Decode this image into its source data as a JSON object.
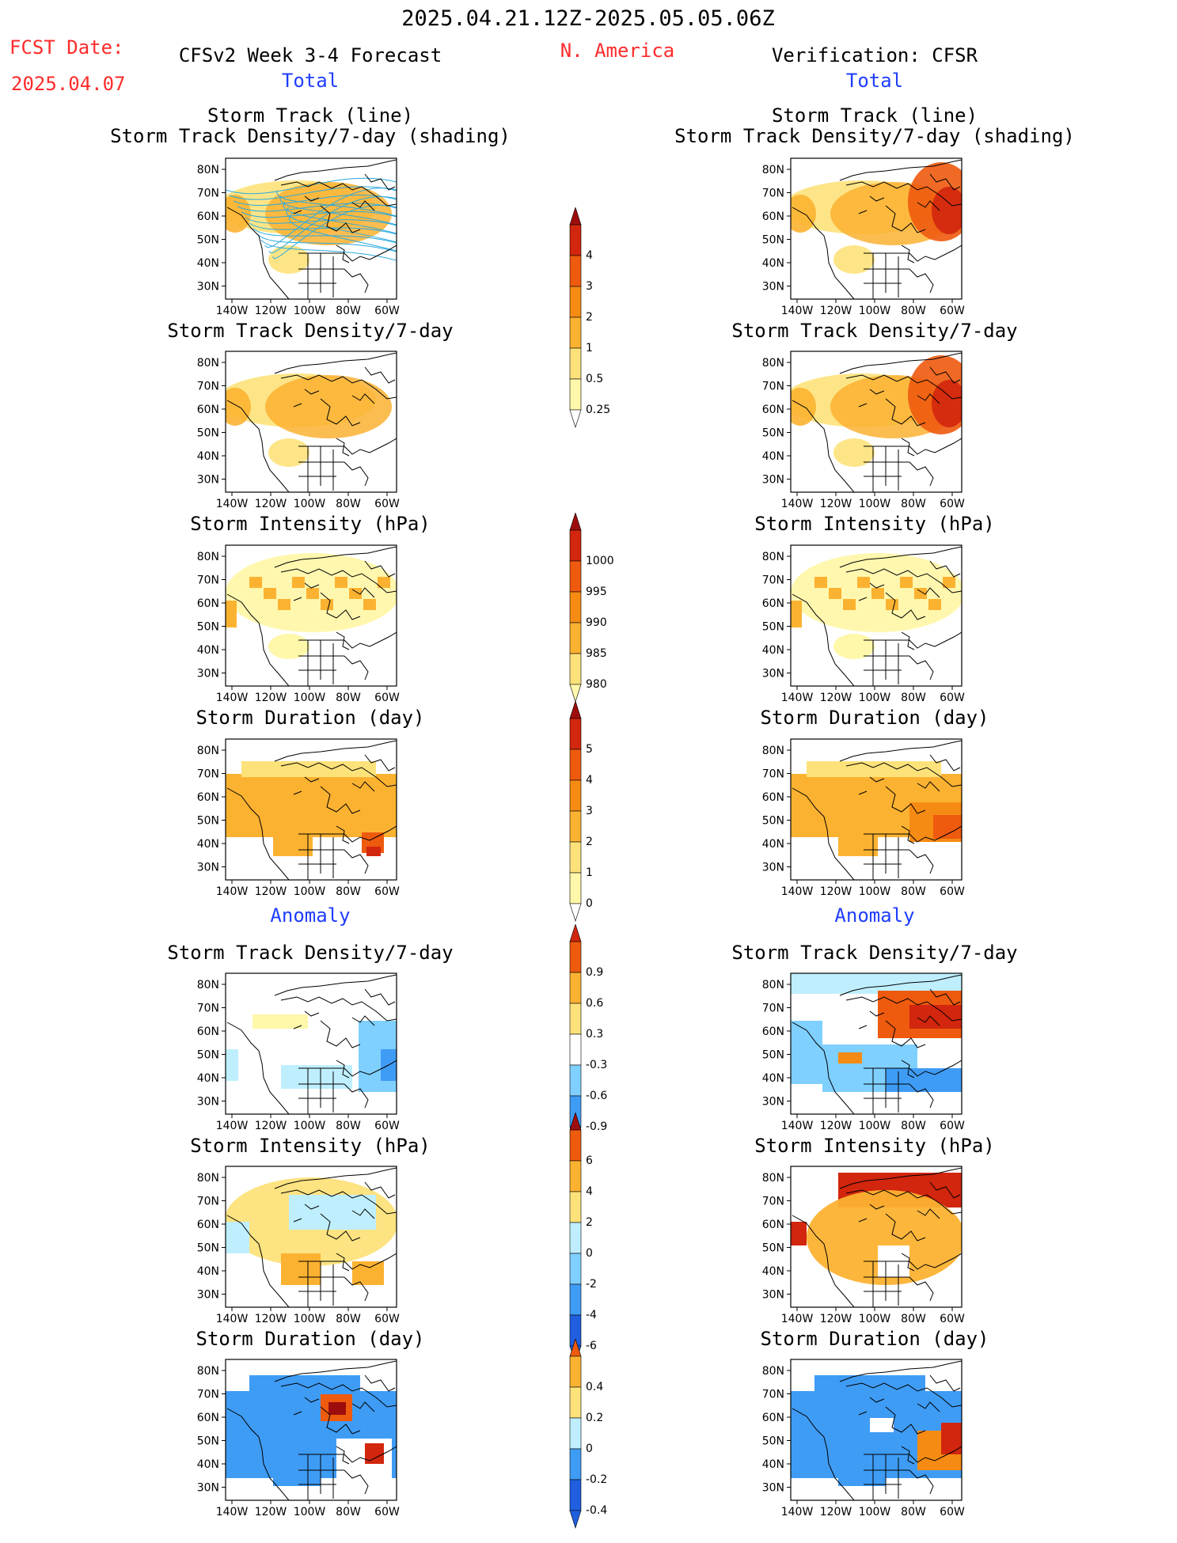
{
  "header": {
    "period": "2025.04.21.12Z-2025.05.05.06Z",
    "fcst_label": "FCST Date:",
    "fcst_date": "2025.04.07",
    "forecast_title": "CFSv2 Week 3-4 Forecast",
    "region": "N. America",
    "verification": "Verification: CFSR"
  },
  "sections": {
    "total": "Total",
    "anomaly": "Anomaly"
  },
  "panel_titles": {
    "track_line": "Storm Track (line)",
    "track_shading": "Storm Track Density/7-day (shading)",
    "density": "Storm Track Density/7-day",
    "intensity": "Storm Intensity (hPa)",
    "duration": "Storm Duration (day)"
  },
  "axes": {
    "lat_labels": [
      "80N",
      "70N",
      "60N",
      "50N",
      "40N",
      "30N"
    ],
    "lon_labels": [
      "140W",
      "120W",
      "100W",
      "80W",
      "60W"
    ]
  },
  "colorbars": {
    "density_total": {
      "labels": [
        "4",
        "3",
        "2",
        "1",
        "0.5",
        "0.25"
      ]
    },
    "intensity_total": {
      "labels": [
        "1000",
        "995",
        "990",
        "985",
        "980"
      ]
    },
    "duration_total": {
      "labels": [
        "5",
        "4",
        "3",
        "2",
        "1",
        "0"
      ]
    },
    "density_anom": {
      "labels": [
        "0.9",
        "0.6",
        "0.3",
        "-0.3",
        "-0.6",
        "-0.9"
      ]
    },
    "intensity_anom": {
      "labels": [
        "6",
        "4",
        "2",
        "0",
        "-2",
        "-4",
        "-6"
      ]
    },
    "duration_anom": {
      "labels": [
        "0.4",
        "0.2",
        "0",
        "-0.2",
        "-0.4"
      ]
    }
  },
  "colors": {
    "title_red": "#ff2b2b",
    "title_blue": "#1f3dff",
    "warm": [
      "#fff7aa",
      "#fde27a",
      "#fcb231",
      "#f68b13",
      "#ee5a0e",
      "#d2260e",
      "#9e0d0d"
    ],
    "cool": [
      "#ffffff",
      "#bfefff",
      "#7fd0ff",
      "#3f9cf5",
      "#1f5fe0"
    ],
    "storm_track_line": "#29a9dd"
  }
}
